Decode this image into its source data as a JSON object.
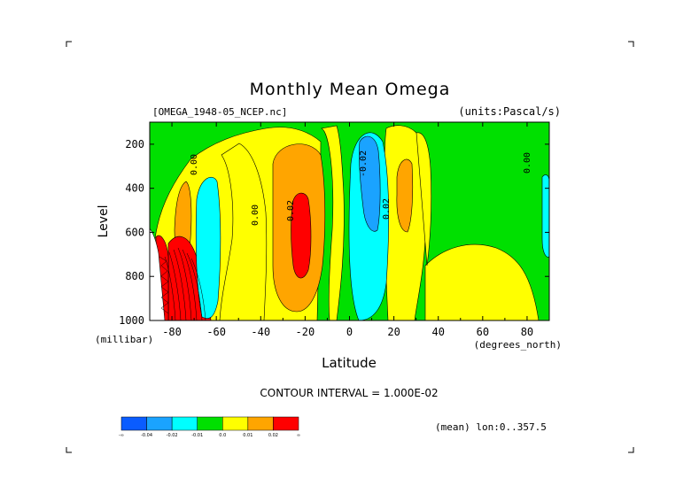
{
  "chart_data": {
    "type": "heatmap",
    "title": "Monthly Mean Omega",
    "file_label": "[OMEGA_1948-05_NCEP.nc]",
    "units_label": "(units:Pascal/s)",
    "ylabel": "Level",
    "yunit": "(millibar)",
    "xlabel": "Latitude",
    "xunit": "(degrees_north)",
    "xlim": [
      -90,
      90
    ],
    "ylim": [
      1000,
      100
    ],
    "y_reversed": true,
    "x_ticks": [
      "-80",
      "-60",
      "-40",
      "-20",
      "0",
      "20",
      "40",
      "60",
      "80"
    ],
    "x_tick_values": [
      -80,
      -60,
      -40,
      -20,
      0,
      20,
      40,
      60,
      80
    ],
    "y_ticks": [
      "200",
      "400",
      "600",
      "800",
      "1000"
    ],
    "y_tick_values": [
      200,
      400,
      600,
      800,
      1000
    ],
    "contour_interval_text": "CONTOUR INTERVAL = 1.000E-02",
    "mean_text": "(mean) lon:0..357.5",
    "contour_labels": [
      "0.00",
      "0.00",
      "-0.02",
      "0.02",
      "0.02",
      "0.00"
    ],
    "colorbar": {
      "colors": [
        "#0a5cff",
        "#1aa3ff",
        "#00ffff",
        "#00e000",
        "#ffff00",
        "#ffa500",
        "#ff0000"
      ],
      "labels": [
        "-∞",
        "-0.04",
        "-0.02",
        "-0.01",
        "0.0",
        "0.01",
        "0.02",
        "∞"
      ]
    },
    "bands": [
      {
        "lat_from": -90,
        "lat_to": -84,
        "value": 0.0
      },
      {
        "lat_from": -84,
        "lat_to": -78,
        "value": 0.005
      },
      {
        "lat_from": -78,
        "lat_to": -72,
        "value": 0.015
      },
      {
        "lat_from": -72,
        "lat_to": -67,
        "value": 0.0
      },
      {
        "lat_from": -67,
        "lat_to": -60,
        "value": -0.015
      },
      {
        "lat_from": -60,
        "lat_to": -35,
        "value": 0.0
      },
      {
        "lat_from": -35,
        "lat_to": -15,
        "value": 0.015
      },
      {
        "lat_from": -15,
        "lat_to": -5,
        "value": 0.0
      },
      {
        "lat_from": -5,
        "lat_to": 15,
        "value": -0.015
      },
      {
        "lat_from": 15,
        "lat_to": 28,
        "value": 0.005
      },
      {
        "lat_from": 28,
        "lat_to": 90,
        "value": 0.0
      }
    ]
  }
}
